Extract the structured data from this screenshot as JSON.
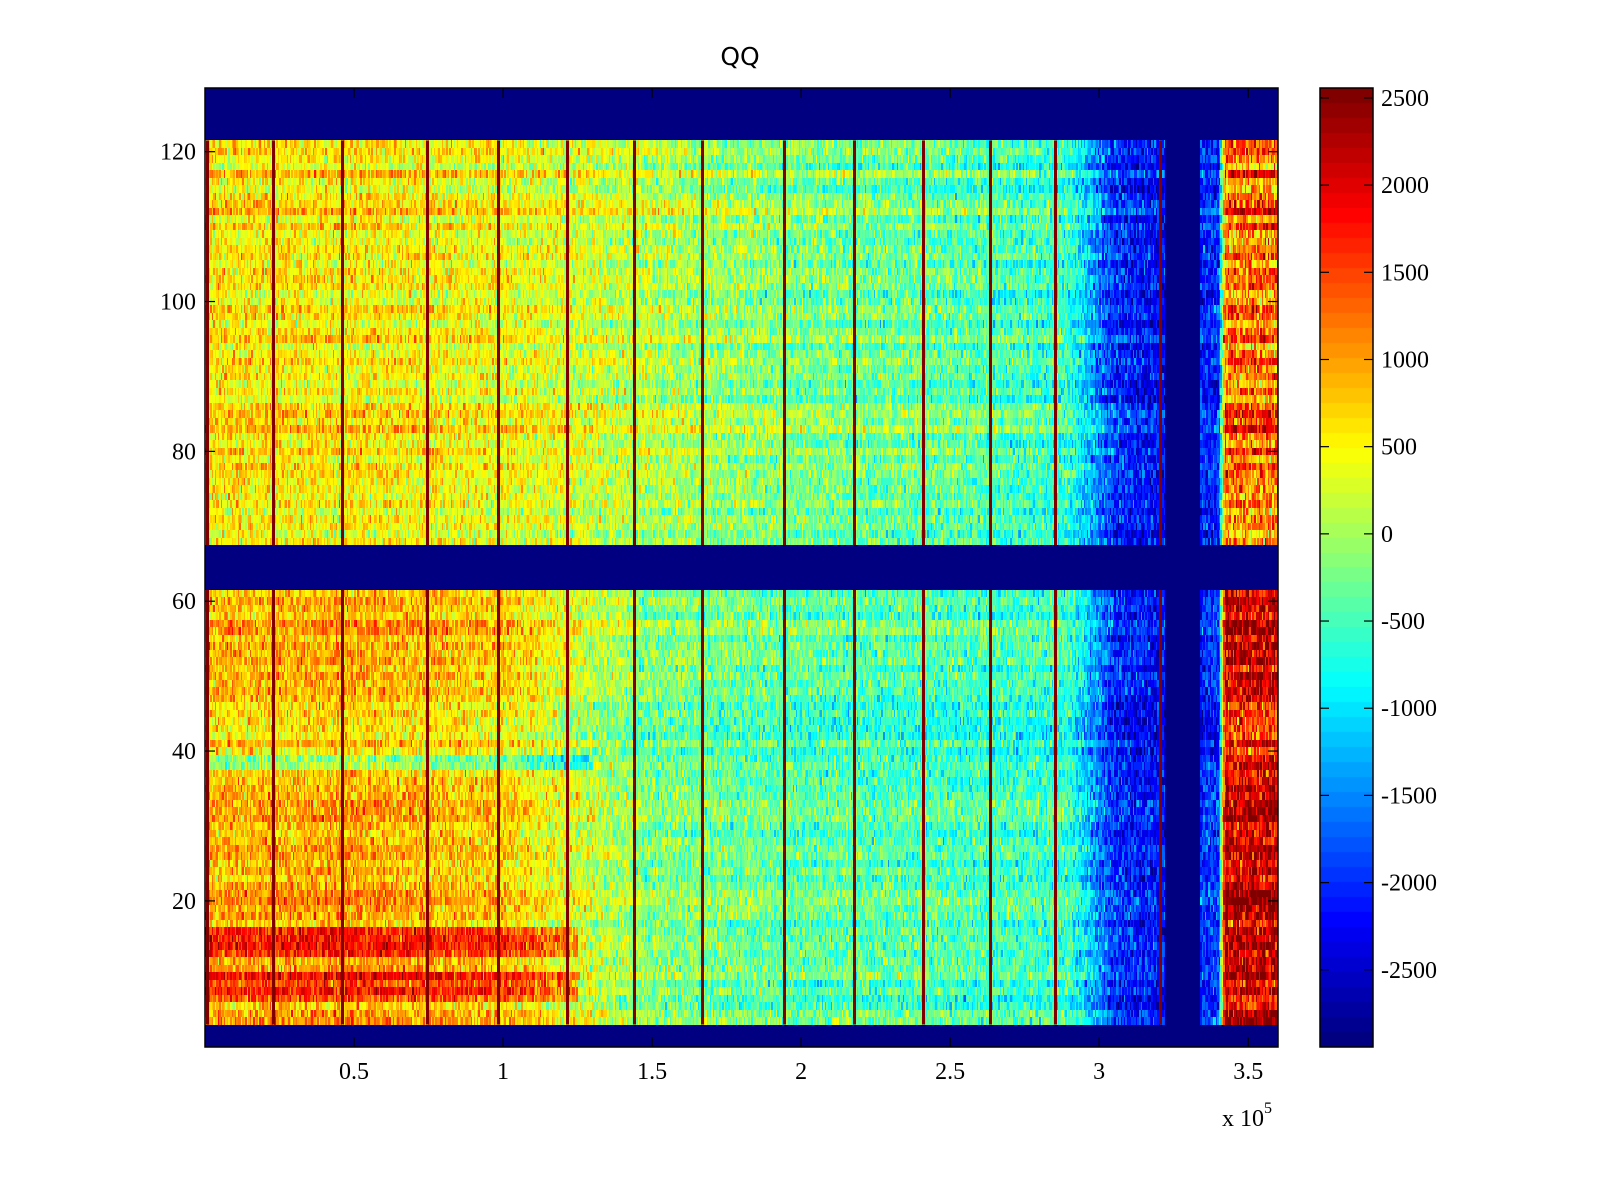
{
  "chart_data": {
    "type": "heatmap",
    "title": "QQ",
    "xlabel": "",
    "ylabel": "",
    "x_multiplier_label": "x 10",
    "x_multiplier_exponent": "5",
    "xlim": [
      0,
      3.6
    ],
    "ylim": [
      0.5,
      128.5
    ],
    "x_ticks": [
      0.5,
      1,
      1.5,
      2,
      2.5,
      3,
      3.5
    ],
    "x_tick_labels": [
      "0.5",
      "1",
      "1.5",
      "2",
      "2.5",
      "3",
      "3.5"
    ],
    "y_ticks": [
      20,
      40,
      60,
      80,
      100,
      120
    ],
    "y_tick_labels": [
      "20",
      "40",
      "60",
      "80",
      "100",
      "120"
    ],
    "colormap": "jet",
    "clim": [
      -2943,
      2557
    ],
    "colorbar_ticks": [
      2500,
      2000,
      1500,
      1000,
      500,
      0,
      -500,
      -1000,
      -1500,
      -2000,
      -2500
    ],
    "colorbar_tick_labels": [
      "2500",
      "2000",
      "1500",
      "1000",
      "500",
      "0",
      "-500",
      "-1000",
      "-1500",
      "-2000",
      "-2500"
    ],
    "empty_row_bands": [
      [
        121.5,
        128.5
      ],
      [
        61.5,
        67.5
      ],
      [
        0.5,
        3.5
      ]
    ],
    "empty_column_bands": [
      [
        3.22,
        3.34
      ]
    ],
    "vertical_line_x": [
      0.005,
      0.225,
      0.455,
      0.74,
      0.98,
      1.21,
      1.435,
      1.665,
      1.94,
      2.175,
      2.405,
      2.63,
      2.85,
      3.2
    ],
    "column_profile": {
      "x": [
        0.0,
        0.5,
        1.0,
        1.2,
        1.5,
        2.0,
        2.5,
        2.9,
        3.05,
        3.2,
        3.34,
        3.4,
        3.42,
        3.6
      ],
      "upper_mean": [
        600,
        550,
        420,
        300,
        100,
        -200,
        -350,
        -600,
        -2000,
        -2200,
        -2000,
        -2000,
        1200,
        1200
      ],
      "lower_mean": [
        800,
        900,
        700,
        300,
        -200,
        -400,
        -500,
        -600,
        -2000,
        -2200,
        -2000,
        -2000,
        2000,
        2000
      ]
    },
    "hot_row_bands": [
      [
        7,
        10
      ],
      [
        13,
        16
      ]
    ],
    "cool_row": 38.5
  }
}
